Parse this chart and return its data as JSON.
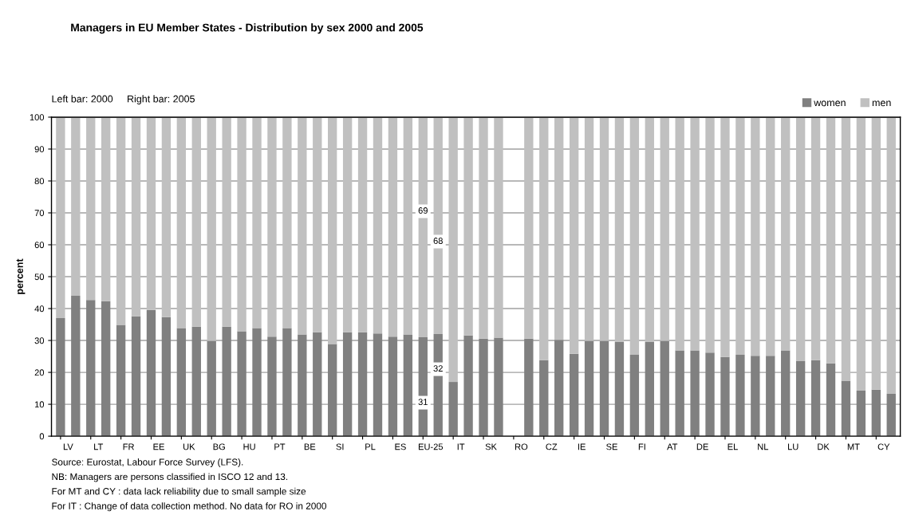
{
  "chart_data": {
    "type": "bar",
    "stacked": true,
    "title": "Managers in EU Member States - Distribution by sex 2000 and 2005",
    "ylabel": "percent",
    "categories": [
      "LV",
      null,
      "LT",
      null,
      "FR",
      null,
      "EE",
      null,
      "UK",
      null,
      "BG",
      null,
      "HU",
      null,
      "PT",
      null,
      "BE",
      null,
      "SI",
      null,
      "PL",
      null,
      "ES",
      null,
      "EU-25",
      null,
      "IT",
      null,
      "SK",
      null,
      "RO",
      null,
      "CZ",
      null,
      "IE",
      null,
      "SE",
      null,
      "FI",
      null,
      "AT",
      null,
      "DE",
      null,
      "EL",
      null,
      "NL",
      null,
      "LU",
      null,
      "DK",
      null,
      "MT",
      null,
      "CY",
      null
    ],
    "series": [
      {
        "name": "women",
        "color": "#808080",
        "values": [
          37.0,
          44.0,
          42.7,
          42.3,
          34.9,
          37.6,
          39.6,
          37.3,
          33.9,
          34.3,
          29.9,
          34.3,
          32.9,
          33.9,
          31.2,
          33.9,
          31.9,
          32.6,
          28.9,
          32.6,
          32.6,
          32.2,
          31.2,
          31.9,
          31,
          32,
          17.0,
          31.6,
          30.6,
          30.9,
          null,
          30.6,
          23.8,
          30.2,
          25.8,
          29.9,
          29.9,
          29.5,
          25.5,
          29.5,
          29.9,
          26.9,
          26.9,
          26.2,
          24.8,
          25.5,
          25.2,
          25.2,
          26.9,
          23.5,
          23.8,
          22.8,
          17.4,
          14.3,
          14.6,
          13.3
        ],
        "value_labels": [
          null,
          null,
          null,
          null,
          null,
          null,
          null,
          null,
          null,
          null,
          null,
          null,
          null,
          null,
          null,
          null,
          null,
          null,
          null,
          null,
          null,
          null,
          null,
          null,
          "31",
          "32",
          null,
          null,
          null,
          null,
          null,
          null,
          null,
          null,
          null,
          null,
          null,
          null,
          null,
          null,
          null,
          null,
          null,
          null,
          null,
          null,
          null,
          null,
          null,
          null,
          null,
          null,
          null,
          null,
          null,
          null
        ]
      },
      {
        "name": "men",
        "color": "#c0c0c0",
        "values": [
          63.0,
          56.0,
          57.3,
          57.7,
          65.1,
          62.4,
          60.4,
          62.7,
          66.1,
          65.7,
          70.1,
          65.7,
          67.1,
          66.1,
          68.8,
          66.1,
          68.1,
          67.4,
          71.1,
          67.4,
          67.4,
          67.8,
          68.8,
          68.1,
          69,
          68,
          83.0,
          68.4,
          69.4,
          69.1,
          null,
          69.4,
          76.2,
          69.8,
          74.2,
          70.1,
          70.1,
          70.5,
          74.5,
          70.5,
          70.1,
          73.1,
          73.1,
          73.8,
          75.2,
          74.5,
          74.8,
          74.8,
          73.1,
          76.5,
          76.2,
          77.2,
          82.6,
          85.7,
          85.4,
          86.7
        ],
        "value_labels": [
          null,
          null,
          null,
          null,
          null,
          null,
          null,
          null,
          null,
          null,
          null,
          null,
          null,
          null,
          null,
          null,
          null,
          null,
          null,
          null,
          null,
          null,
          null,
          null,
          "69",
          "68",
          null,
          null,
          null,
          null,
          null,
          null,
          null,
          null,
          null,
          null,
          null,
          null,
          null,
          null,
          null,
          null,
          null,
          null,
          null,
          null,
          null,
          null,
          null,
          null,
          null,
          null,
          null,
          null,
          null,
          null
        ]
      }
    ],
    "ylim": [
      0,
      100
    ],
    "yticks": [
      0,
      10,
      20,
      30,
      40,
      50,
      60,
      70,
      80,
      90,
      100
    ],
    "grid": "y",
    "legend": "top right",
    "annotations": [
      "Left bar: 2000     Right bar: 2005",
      "Source: Eurostat, Labour Force Survey (LFS).",
      "NB: Managers are persons classified in ISCO 12 and 13.",
      "For MT and CY : data lack reliability due to small sample size",
      "For IT : Change of data collection method. No data for RO in 2000"
    ]
  }
}
